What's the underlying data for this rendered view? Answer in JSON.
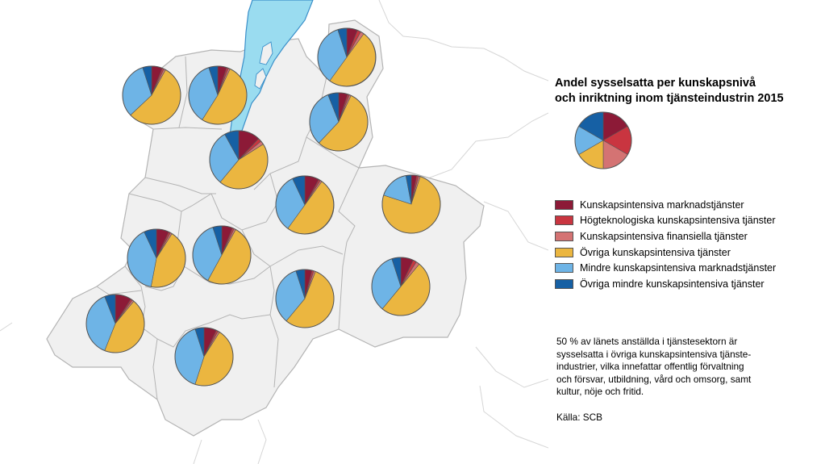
{
  "title_line1": "Andel sysselsatta per kunskapsnivå",
  "title_line2": "och inriktning inom tjänsteindustrin 2015",
  "categories": [
    {
      "label": "Kunskapsintensiva marknadstjänster",
      "color": "#8c1a37"
    },
    {
      "label": "Högteknologiska kunskapsintensiva tjänster",
      "color": "#c93540"
    },
    {
      "label": "Kunskapsintensiva finansiella tjänster",
      "color": "#d47373"
    },
    {
      "label": "Övriga kunskapsintensiva tjänster",
      "color": "#ebb640"
    },
    {
      "label": "Mindre kunskapsintensiva marknadstjänster",
      "color": "#6eb4e6"
    },
    {
      "label": "Övriga mindre kunskapsintensiva tjänster",
      "color": "#1660a4"
    }
  ],
  "key_pie_shares": [
    0.1667,
    0.1667,
    0.1667,
    0.1667,
    0.1667,
    0.1667
  ],
  "note": "50 % av länets anställda i tjänstesektorn är\nsysselsatta i övriga kunskapsintensiva tjänste-\nindustrier, vilka innefattar offentlig förvaltning\noch försvar, utbildning, vård och omsorg, samt\nkultur, nöje och fritid.",
  "source": "Källa: SCB",
  "map_colors": {
    "land": "#f0f0f0",
    "border": "#b4b4b4",
    "water": "#9adcf0",
    "water_border": "#3a8fc9"
  },
  "municipal_pies": [
    {
      "shares": [
        0.06,
        0.01,
        0.01,
        0.55,
        0.32,
        0.05
      ]
    },
    {
      "shares": [
        0.05,
        0.01,
        0.01,
        0.52,
        0.36,
        0.05
      ]
    },
    {
      "shares": [
        0.06,
        0.02,
        0.02,
        0.5,
        0.35,
        0.05
      ]
    },
    {
      "shares": [
        0.05,
        0.01,
        0.01,
        0.55,
        0.32,
        0.06
      ]
    },
    {
      "shares": [
        0.12,
        0.02,
        0.02,
        0.45,
        0.31,
        0.08
      ]
    },
    {
      "shares": [
        0.08,
        0.01,
        0.01,
        0.5,
        0.33,
        0.07
      ]
    },
    {
      "shares": [
        0.03,
        0.01,
        0.01,
        0.75,
        0.17,
        0.03
      ]
    },
    {
      "shares": [
        0.07,
        0.01,
        0.01,
        0.44,
        0.4,
        0.07
      ]
    },
    {
      "shares": [
        0.06,
        0.01,
        0.01,
        0.5,
        0.37,
        0.05
      ]
    },
    {
      "shares": [
        0.04,
        0.01,
        0.01,
        0.55,
        0.34,
        0.05
      ]
    },
    {
      "shares": [
        0.07,
        0.02,
        0.02,
        0.5,
        0.34,
        0.05
      ]
    },
    {
      "shares": [
        0.09,
        0.01,
        0.01,
        0.45,
        0.38,
        0.06
      ]
    },
    {
      "shares": [
        0.07,
        0.01,
        0.01,
        0.46,
        0.4,
        0.05
      ]
    }
  ]
}
